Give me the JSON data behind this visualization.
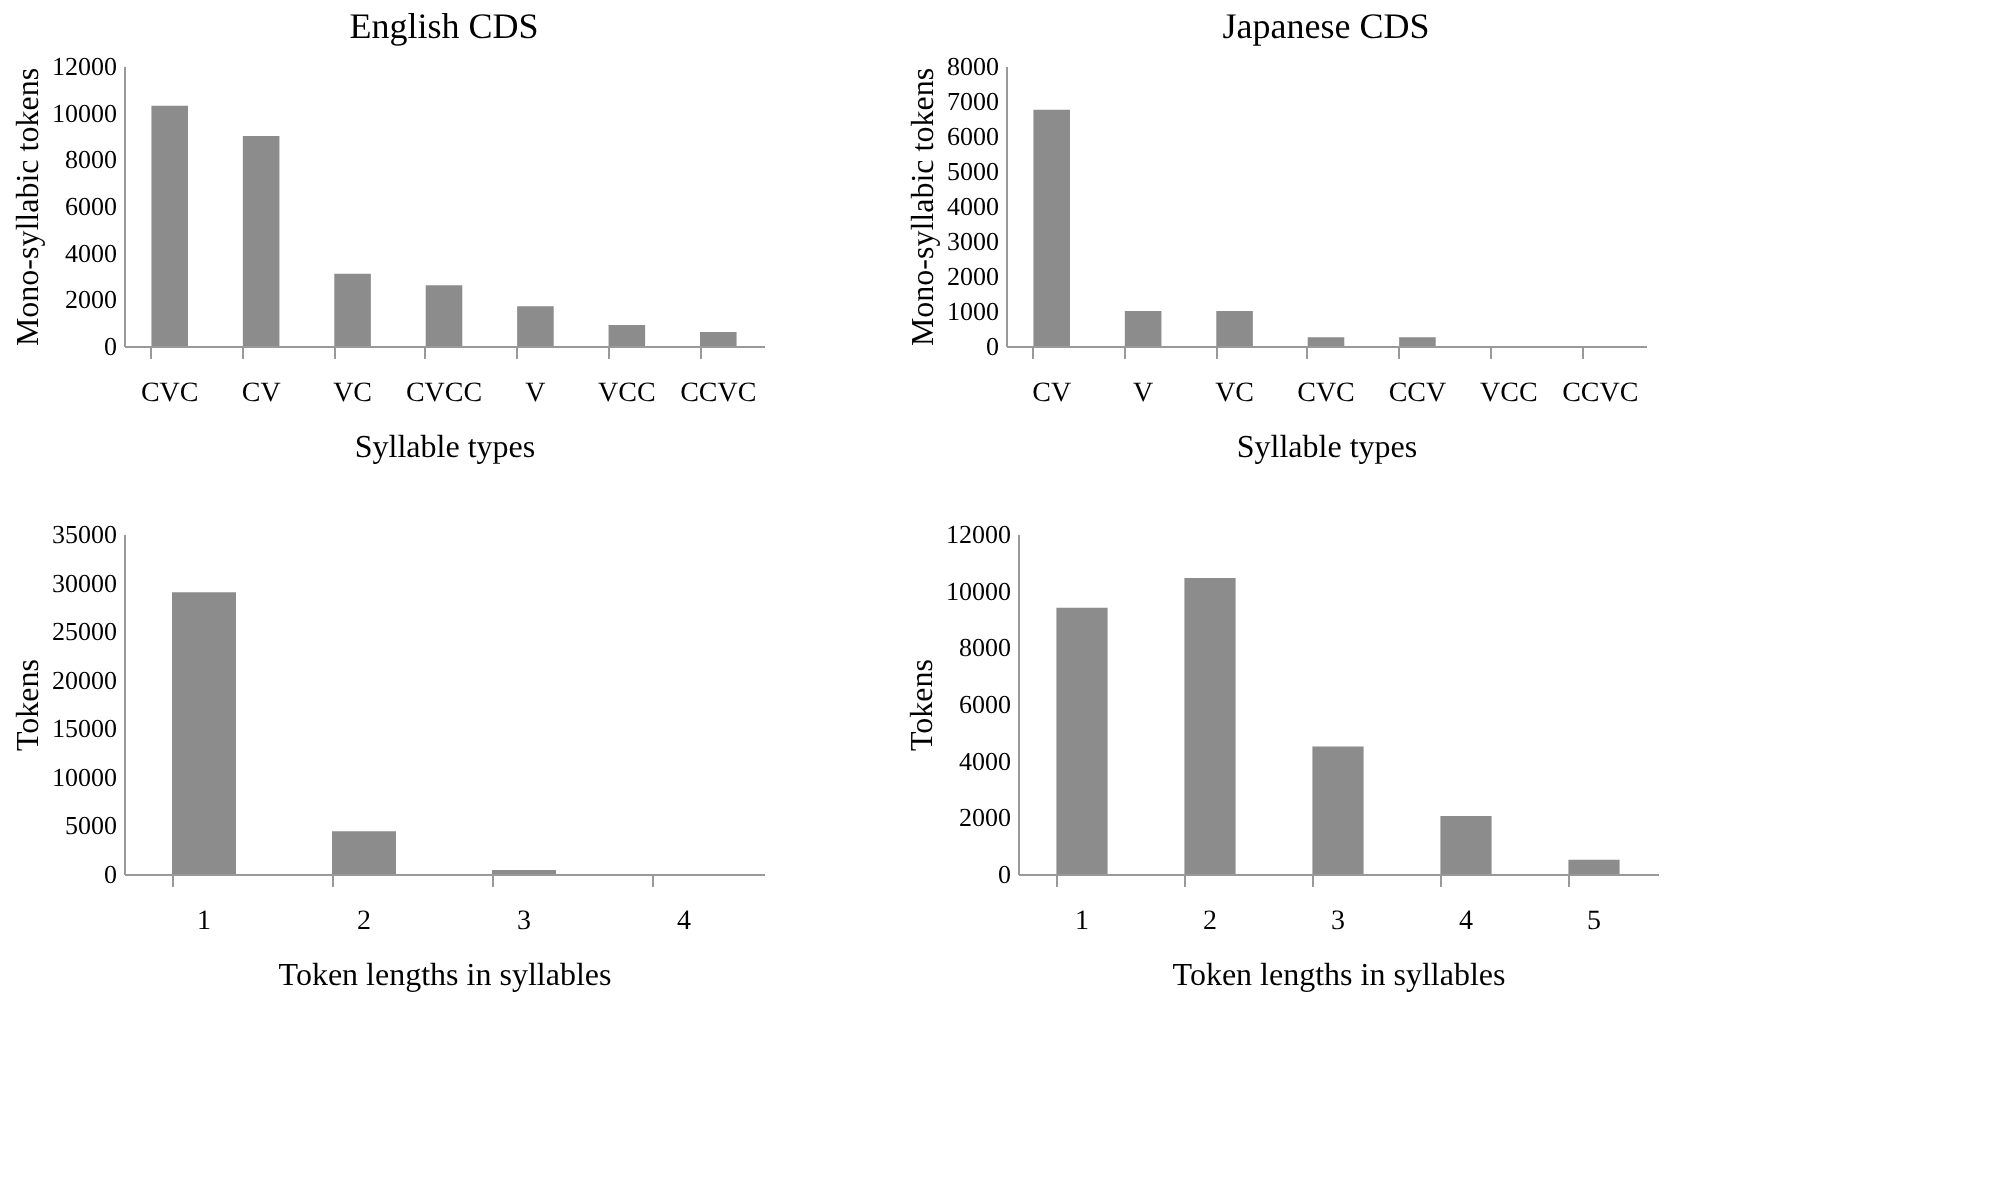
{
  "chart_data": [
    {
      "type": "bar",
      "title": "English CDS",
      "xlabel": "Syllable types",
      "ylabel": "Mono-syllabic tokens",
      "categories": [
        "CVC",
        "CV",
        "VC",
        "CVCC",
        "V",
        "VCC",
        "CCVC"
      ],
      "values": [
        10300,
        9000,
        3100,
        2600,
        1700,
        900,
        600
      ],
      "color": "#8c8c8c",
      "ylim": [
        0,
        12000
      ],
      "yticks": [
        0,
        2000,
        4000,
        6000,
        8000,
        10000,
        12000
      ],
      "grid": false
    },
    {
      "type": "bar",
      "title": "Japanese CDS",
      "xlabel": "Syllable types",
      "ylabel": "Mono-syllabic tokens",
      "categories": [
        "CV",
        "V",
        "VC",
        "CVC",
        "CCV",
        "VCC",
        "CCVC"
      ],
      "values": [
        6750,
        1000,
        1000,
        250,
        250,
        0,
        0
      ],
      "color": "#8c8c8c",
      "ylim": [
        0,
        8000
      ],
      "yticks": [
        0,
        1000,
        2000,
        3000,
        4000,
        5000,
        6000,
        7000,
        8000
      ],
      "grid": false
    },
    {
      "type": "bar",
      "xlabel": "Token lengths in syllables",
      "ylabel": "Tokens",
      "categories": [
        "1",
        "2",
        "3",
        "4"
      ],
      "values": [
        29000,
        4400,
        400,
        0
      ],
      "color": "#8c8c8c",
      "ylim": [
        0,
        35000
      ],
      "yticks": [
        0,
        5000,
        10000,
        15000,
        20000,
        25000,
        30000,
        35000
      ],
      "grid": false
    },
    {
      "type": "bar",
      "xlabel": "Token lengths in syllables",
      "ylabel": "Tokens",
      "categories": [
        "1",
        "2",
        "3",
        "4",
        "5"
      ],
      "values": [
        9400,
        10450,
        4500,
        2050,
        500
      ],
      "color": "#8c8c8c",
      "ylim": [
        0,
        12000
      ],
      "yticks": [
        0,
        2000,
        4000,
        6000,
        8000,
        10000,
        12000
      ],
      "grid": false
    }
  ]
}
